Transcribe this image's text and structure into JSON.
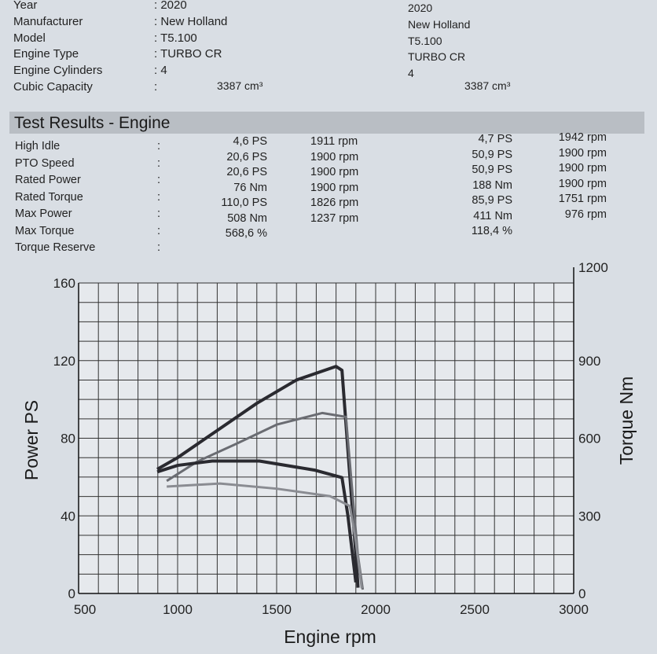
{
  "specs": {
    "labels": [
      "Year",
      "Manufacturer",
      "Model",
      "Engine Type",
      "Engine Cylinders",
      "Cubic Capacity"
    ],
    "col1": [
      ": 2020",
      ": New Holland",
      ": T5.100",
      ": TURBO CR",
      ": 4",
      ":"
    ],
    "col2": [
      "2020",
      "New Holland",
      "T5.100",
      "TURBO CR",
      "4"
    ],
    "capacity1": "3387 cm³",
    "capacity2": "3387 cm³"
  },
  "results": {
    "title": "Test Results - Engine",
    "labels": [
      "High Idle",
      "PTO Speed",
      "Rated Power",
      "Rated Torque",
      "Max Power",
      "Max Torque",
      "Torque Reserve"
    ],
    "colon": [
      ":",
      ":",
      ":",
      ":",
      ":",
      ":",
      ":"
    ],
    "a_val": [
      "4,6 PS",
      "20,6 PS",
      "20,6 PS",
      "76 Nm",
      "110,0 PS",
      "508 Nm",
      "568,6 %"
    ],
    "a_rpm": [
      "1911 rpm",
      "1900 rpm",
      "1900 rpm",
      "1900 rpm",
      "1826 rpm",
      "1237 rpm"
    ],
    "b_val": [
      "4,7 PS",
      "50,9 PS",
      "50,9 PS",
      "188 Nm",
      "85,9 PS",
      "411 Nm",
      "118,4 %"
    ],
    "b_rpm": [
      "1942 rpm",
      "1900 rpm",
      "1900 rpm",
      "1900 rpm",
      "1751 rpm",
      "976 rpm"
    ]
  },
  "chart_data": {
    "type": "line",
    "xlabel": "Engine rpm",
    "ylabel": "Power PS",
    "y2label": "Torque Nm",
    "xlim": [
      500,
      3000
    ],
    "ylim": [
      0,
      160
    ],
    "y2lim": [
      0,
      1200
    ],
    "xticks": [
      "500",
      "1000",
      "1500",
      "2000",
      "2500",
      "3000"
    ],
    "yticks": [
      "0",
      "40",
      "80",
      "120",
      "160"
    ],
    "y2ticks": [
      "0",
      "300",
      "600",
      "900",
      "1200"
    ],
    "grid": true,
    "series": [
      {
        "axis": "left",
        "color": "#2a2a30",
        "width": 4,
        "points": [
          [
            897,
            64
          ],
          [
            1000,
            70
          ],
          [
            1200,
            84
          ],
          [
            1400,
            98
          ],
          [
            1600,
            110
          ],
          [
            1800,
            117
          ],
          [
            1830,
            115
          ],
          [
            1870,
            60
          ],
          [
            1900,
            20
          ],
          [
            1911,
            3
          ]
        ]
      },
      {
        "axis": "left",
        "color": "#6a6c72",
        "width": 3,
        "points": [
          [
            945,
            58
          ],
          [
            1100,
            68
          ],
          [
            1294,
            77
          ],
          [
            1500,
            87
          ],
          [
            1730,
            93
          ],
          [
            1850,
            91
          ],
          [
            1880,
            55
          ],
          [
            1910,
            20
          ],
          [
            1935,
            2
          ]
        ]
      },
      {
        "axis": "right",
        "color": "#2a2a30",
        "width": 4,
        "points": [
          [
            897,
            470
          ],
          [
            1000,
            495
          ],
          [
            1175,
            512
          ],
          [
            1413,
            512
          ],
          [
            1690,
            477
          ],
          [
            1830,
            448
          ],
          [
            1860,
            300
          ],
          [
            1900,
            43
          ]
        ]
      },
      {
        "axis": "right",
        "color": "#8a8c92",
        "width": 3,
        "points": [
          [
            945,
            413
          ],
          [
            1214,
            425
          ],
          [
            1500,
            405
          ],
          [
            1770,
            376
          ],
          [
            1870,
            338
          ],
          [
            1900,
            200
          ],
          [
            1930,
            20
          ]
        ]
      }
    ]
  }
}
